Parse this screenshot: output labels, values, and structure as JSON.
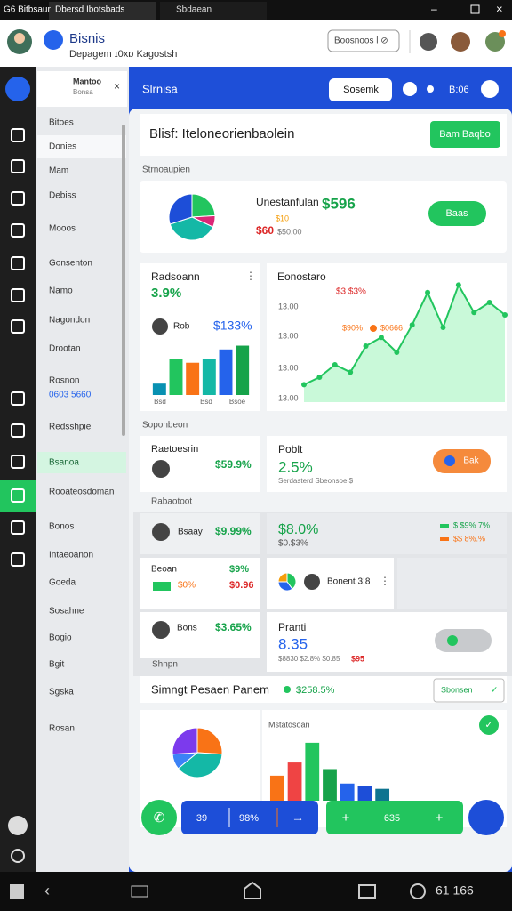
{
  "tabs": [
    "G6 Bitbsaur",
    "Dbersd Ibotsbads",
    "Sbdaean"
  ],
  "header": {
    "title": "Bisnis",
    "subtitle": "Depagem ɪ0xɒ Kagostsh",
    "search": "Boosnoos l ⊘"
  },
  "sidebar": {
    "popup_title": "Mantoo",
    "popup_subtitle": "Bonsa",
    "items": [
      "Bitoes",
      "Donies",
      "Mam",
      "Debiss",
      "Mooos",
      "Gonsenton",
      "Namo",
      "Nagondon",
      "Drootan",
      "Rosnon",
      "0603 5660",
      "Redsshpie",
      "Bsanoa",
      "Rooateosdoman",
      "Bonos",
      "Intaeoanon",
      "Goeda",
      "Sosahne",
      "Bogio",
      "Bgit",
      "Sgska",
      "Rosan"
    ]
  },
  "topbar": {
    "title": "Slrnisa",
    "button": "Sosemk",
    "time": "B:06"
  },
  "page": {
    "title": "Blisf: Iteloneorienbaolein",
    "button": "Bam Baqbo"
  },
  "sections": [
    "Strnoaupien",
    "Soponbeon",
    "Rabaotoot",
    "Shnpn"
  ],
  "summary": {
    "title": "Unestanfulan",
    "value": "$596",
    "sub1": "$10",
    "sub2": "$60",
    "sub3": "$50.00",
    "button": "Baas",
    "pie": {
      "values": [
        24,
        8,
        38,
        30
      ],
      "colors": [
        "#22c55e",
        "#db2777",
        "#14b8a6",
        "#1d4ed8"
      ]
    }
  },
  "bar_card": {
    "title": "Radsoann",
    "value": "3.9%",
    "person": "Rob",
    "amount": "$133%",
    "labels": [
      "Bsd",
      "Bsd",
      "Bsoe"
    ],
    "values": [
      12,
      38,
      34,
      38,
      48,
      52
    ],
    "colors": [
      "#0891b2",
      "#22c55e",
      "#f97316",
      "#14b8a6",
      "#2563eb",
      "#16a34a"
    ],
    "ylim": [
      0,
      60
    ]
  },
  "line_card": {
    "title": "Eonostaro",
    "subtitle": "$3 $3%",
    "ytick_labels": [
      "13.00",
      "13.00",
      "13.00",
      "13.00"
    ],
    "legend": [
      "$90%",
      "$0666"
    ],
    "values": [
      14,
      20,
      30,
      24,
      45,
      52,
      40,
      62,
      88,
      60,
      94,
      72,
      80,
      70
    ],
    "ylim": [
      0,
      100
    ],
    "color": "#22c55e"
  },
  "person_card": {
    "title": "Raetoesrin",
    "value": "$59.9%"
  },
  "profit_card": {
    "title": "Poblt",
    "value": "2.5%",
    "note": "Serdasterd Sbeonsoe $",
    "button": "Bak"
  },
  "row1": {
    "name": "Bsaay",
    "value": "$9.99%"
  },
  "stat": {
    "value": "$8.0%",
    "sub": "$0.$3%",
    "legend": [
      "$ $9% 7%",
      "$$ 8%.%"
    ]
  },
  "row2": {
    "name": "Beoan",
    "value": "$9%",
    "sub": "$0%",
    "delta": "$0.96"
  },
  "mini": {
    "label": "Bonent 3!8",
    "pie": {
      "values": [
        40,
        35,
        25
      ],
      "colors": [
        "#22c55e",
        "#2563eb",
        "#f59e0b"
      ]
    }
  },
  "row3": {
    "name": "Bons",
    "value": "$3.65%"
  },
  "pranti": {
    "title": "Pranti",
    "value": "8.35",
    "note": "$8830 $2.8% $0.85",
    "flag": "$95"
  },
  "panel": {
    "title": "Simngt Pesaen Panem",
    "value": "$258.5%",
    "dropdown": "Sbonsen",
    "chart_title": "Mstatosoan",
    "pie": {
      "values": [
        26,
        38,
        10,
        26
      ],
      "colors": [
        "#f97316",
        "#14b8a6",
        "#3b82f6",
        "#7c3aed"
      ]
    },
    "bars": {
      "values": [
        38,
        58,
        88,
        48,
        26,
        22,
        18
      ],
      "colors": [
        "#f97316",
        "#ef4444",
        "#22c55e",
        "#16a34a",
        "#2563eb",
        "#1d4ed8",
        "#0e7490"
      ],
      "ylim": [
        0,
        100
      ]
    }
  },
  "actions": {
    "left": [
      "39",
      "98%"
    ],
    "right": [
      "635"
    ]
  },
  "statusbar": "61 166"
}
